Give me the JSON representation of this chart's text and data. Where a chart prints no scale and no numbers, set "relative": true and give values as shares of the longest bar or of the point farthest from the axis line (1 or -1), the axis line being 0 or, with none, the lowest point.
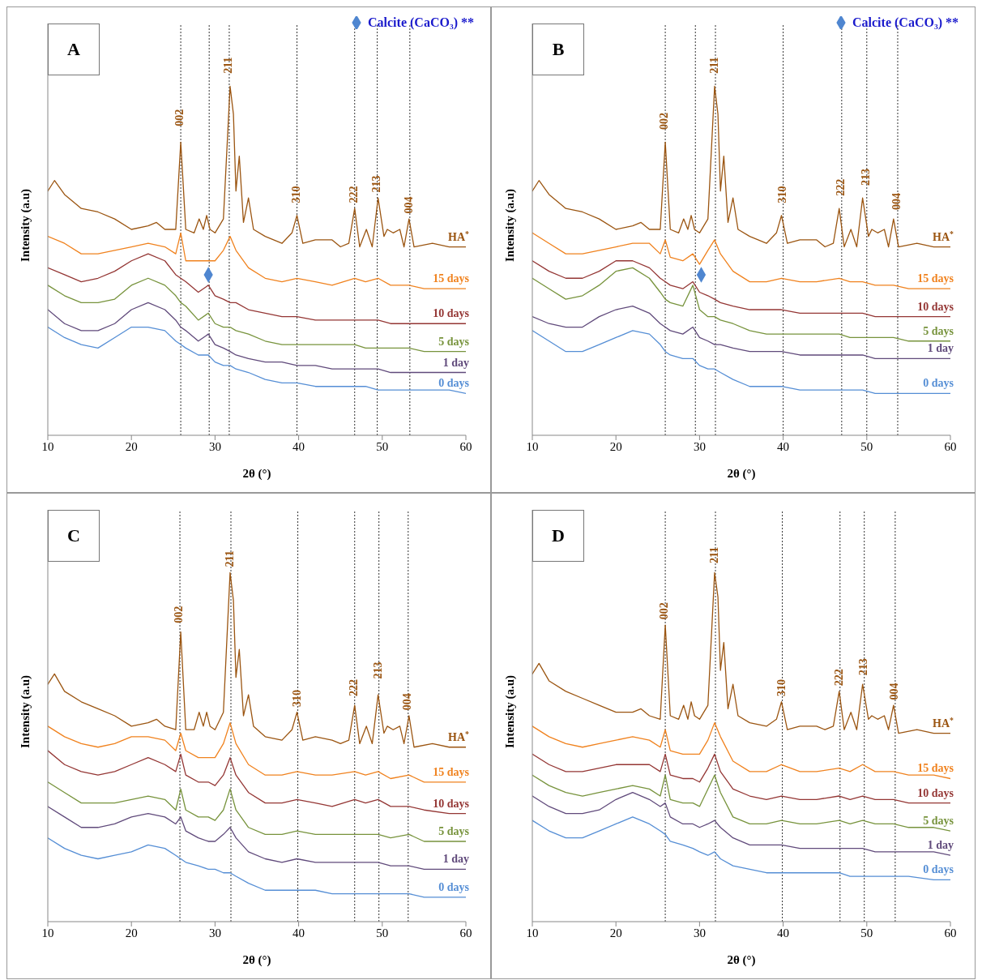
{
  "chart_data": [
    {
      "type": "line",
      "title": "A",
      "xlabel": "2θ (°)",
      "ylabel": "Intensity (a.u)",
      "relative": true,
      "xlim": [
        10,
        60
      ],
      "xticks": [
        10,
        20,
        30,
        40,
        50,
        60
      ],
      "grid": false,
      "marker": "none",
      "legend": "top right",
      "series": [
        {
          "name": "HA$^{*}$",
          "color": "#9b5511",
          "x": [
            10,
            10.8,
            12,
            14,
            16,
            18,
            20,
            22,
            23,
            24,
            25.3,
            25.9,
            26.5,
            27.5,
            28.1,
            28.6,
            29,
            29.4,
            30,
            31,
            31.8,
            32.2,
            32.5,
            32.9,
            33.4,
            34,
            34.6,
            36,
            38,
            39.2,
            39.8,
            40.5,
            42,
            44,
            45,
            46,
            46.7,
            47.3,
            48.1,
            48.8,
            49.5,
            50.2,
            50.6,
            51.3,
            52.1,
            52.6,
            53.2,
            53.8,
            56,
            58,
            60
          ],
          "values": [
            0.7,
            0.73,
            0.69,
            0.65,
            0.64,
            0.62,
            0.59,
            0.6,
            0.61,
            0.59,
            0.59,
            0.84,
            0.59,
            0.58,
            0.62,
            0.59,
            0.63,
            0.59,
            0.58,
            0.62,
            1,
            0.92,
            0.7,
            0.8,
            0.61,
            0.68,
            0.59,
            0.57,
            0.55,
            0.58,
            0.63,
            0.55,
            0.56,
            0.56,
            0.54,
            0.55,
            0.65,
            0.54,
            0.59,
            0.54,
            0.68,
            0.57,
            0.59,
            0.58,
            0.59,
            0.54,
            0.62,
            0.54,
            0.55,
            0.54,
            0.54
          ]
        },
        {
          "name": "15 days",
          "color": "#f0821e",
          "x": [
            10,
            12,
            14,
            16,
            18,
            20,
            22,
            24,
            25.3,
            25.9,
            26.5,
            28,
            29.2,
            30,
            31,
            31.8,
            32.5,
            34,
            36,
            38,
            39.8,
            42,
            44,
            46.7,
            48,
            49.5,
            51,
            53.2,
            55,
            58,
            60
          ],
          "values": [
            0.57,
            0.55,
            0.52,
            0.52,
            0.53,
            0.54,
            0.55,
            0.54,
            0.52,
            0.58,
            0.5,
            0.5,
            0.5,
            0.5,
            0.53,
            0.57,
            0.53,
            0.48,
            0.45,
            0.44,
            0.45,
            0.44,
            0.43,
            0.45,
            0.44,
            0.45,
            0.43,
            0.43,
            0.42,
            0.42,
            0.42
          ]
        },
        {
          "name": "10 days",
          "color": "#943634",
          "x": [
            10,
            12,
            14,
            16,
            18,
            20,
            22,
            24,
            25.3,
            25.9,
            26.5,
            28,
            29.2,
            30,
            31,
            31.8,
            32.5,
            34,
            36,
            38,
            39.8,
            42,
            44,
            46.7,
            48,
            49.5,
            51,
            53.2,
            55,
            58,
            60
          ],
          "values": [
            0.48,
            0.46,
            0.44,
            0.45,
            0.47,
            0.5,
            0.52,
            0.5,
            0.46,
            0.45,
            0.44,
            0.41,
            0.43,
            0.4,
            0.39,
            0.38,
            0.38,
            0.36,
            0.35,
            0.34,
            0.34,
            0.33,
            0.33,
            0.33,
            0.33,
            0.33,
            0.32,
            0.32,
            0.32,
            0.32,
            0.32
          ]
        },
        {
          "name": "5 days",
          "color": "#77933c",
          "x": [
            10,
            12,
            14,
            16,
            18,
            20,
            22,
            24,
            25.3,
            25.9,
            26.5,
            28,
            29.2,
            30,
            31,
            31.8,
            32.5,
            34,
            36,
            38,
            39.8,
            42,
            44,
            46.7,
            48,
            49.5,
            51,
            53.2,
            55,
            58,
            60
          ],
          "values": [
            0.43,
            0.4,
            0.38,
            0.38,
            0.39,
            0.43,
            0.45,
            0.43,
            0.4,
            0.38,
            0.37,
            0.33,
            0.35,
            0.32,
            0.31,
            0.31,
            0.3,
            0.29,
            0.27,
            0.26,
            0.26,
            0.26,
            0.26,
            0.26,
            0.25,
            0.25,
            0.25,
            0.25,
            0.24,
            0.24,
            0.24
          ]
        },
        {
          "name": "1 day",
          "color": "#604a7b",
          "x": [
            10,
            12,
            14,
            16,
            18,
            20,
            22,
            24,
            25.3,
            25.9,
            26.5,
            28,
            29.2,
            30,
            31,
            31.8,
            32.5,
            34,
            36,
            38,
            39.8,
            42,
            44,
            46.7,
            48,
            49.5,
            51,
            53.2,
            55,
            58,
            60
          ],
          "values": [
            0.36,
            0.32,
            0.3,
            0.3,
            0.32,
            0.36,
            0.38,
            0.36,
            0.33,
            0.31,
            0.3,
            0.27,
            0.29,
            0.26,
            0.25,
            0.24,
            0.23,
            0.22,
            0.21,
            0.21,
            0.2,
            0.2,
            0.19,
            0.19,
            0.19,
            0.19,
            0.18,
            0.18,
            0.18,
            0.18,
            0.18
          ]
        },
        {
          "name": "0 days",
          "color": "#558ed5",
          "x": [
            10,
            12,
            14,
            16,
            18,
            20,
            22,
            24,
            25.3,
            25.9,
            26.5,
            28,
            29.2,
            30,
            31,
            31.8,
            32.5,
            34,
            36,
            38,
            39.8,
            42,
            44,
            46.7,
            48,
            49.5,
            51,
            53.2,
            55,
            58,
            60
          ],
          "values": [
            0.31,
            0.28,
            0.26,
            0.25,
            0.28,
            0.31,
            0.31,
            0.3,
            0.27,
            0.26,
            0.25,
            0.23,
            0.23,
            0.21,
            0.2,
            0.2,
            0.19,
            0.18,
            0.16,
            0.15,
            0.15,
            0.14,
            0.14,
            0.14,
            0.14,
            0.13,
            0.13,
            0.13,
            0.13,
            0.13,
            0.12
          ]
        },
        {
          "type": "scatter",
          "name": "Calcite (CaCO₃) **",
          "color": "#4f86d0",
          "marker": "diamond",
          "x": [
            29.2
          ],
          "values": [
            0.46
          ]
        }
      ],
      "ref_lines": [
        {
          "axis": "x",
          "value": 25.9,
          "color": "#333333",
          "line_style": "dotted"
        },
        {
          "axis": "x",
          "value": 29.3,
          "color": "#333333",
          "line_style": "dotted"
        },
        {
          "axis": "x",
          "value": 31.7,
          "color": "#333333",
          "line_style": "dotted"
        },
        {
          "axis": "x",
          "value": 39.8,
          "color": "#333333",
          "line_style": "dotted"
        },
        {
          "axis": "x",
          "value": 46.7,
          "color": "#333333",
          "line_style": "dotted"
        },
        {
          "axis": "x",
          "value": 49.4,
          "color": "#333333",
          "line_style": "dotted"
        },
        {
          "axis": "x",
          "value": 53.3,
          "color": "#333333",
          "line_style": "dotted"
        }
      ],
      "annotations": [
        {
          "text": "002",
          "x": 25.9,
          "y": 0.91
        },
        {
          "text": "211",
          "x": 31.7,
          "y": 1.06
        },
        {
          "text": "310",
          "x": 39.8,
          "y": 0.69
        },
        {
          "text": "222",
          "x": 46.7,
          "y": 0.69
        },
        {
          "text": "213",
          "x": 49.4,
          "y": 0.72
        },
        {
          "text": "004",
          "x": 53.3,
          "y": 0.66
        }
      ]
    },
    {
      "type": "line",
      "title": "B",
      "xlabel": "2θ (°)",
      "ylabel": "Intensity (a.u)",
      "relative": true,
      "xlim": [
        10,
        60
      ],
      "xticks": [
        10,
        20,
        30,
        40,
        50,
        60
      ],
      "grid": false,
      "marker": "none",
      "legend": "top right",
      "series": [
        {
          "name": "HA$^{*}$",
          "color": "#9b5511",
          "x": [
            10,
            10.8,
            12,
            14,
            16,
            18,
            20,
            22,
            23,
            24,
            25.3,
            25.9,
            26.5,
            27.5,
            28.1,
            28.6,
            29,
            29.4,
            30,
            31,
            31.8,
            32.2,
            32.5,
            32.9,
            33.4,
            34,
            34.6,
            36,
            38,
            39.2,
            39.8,
            40.5,
            42,
            44,
            45,
            46,
            46.7,
            47.3,
            48.1,
            48.8,
            49.5,
            50.2,
            50.6,
            51.3,
            52.1,
            52.6,
            53.2,
            53.8,
            56,
            58,
            60
          ],
          "values": [
            0.7,
            0.73,
            0.69,
            0.65,
            0.64,
            0.62,
            0.59,
            0.6,
            0.61,
            0.59,
            0.59,
            0.84,
            0.59,
            0.58,
            0.62,
            0.59,
            0.63,
            0.59,
            0.58,
            0.62,
            1,
            0.92,
            0.7,
            0.8,
            0.61,
            0.68,
            0.59,
            0.57,
            0.55,
            0.58,
            0.63,
            0.55,
            0.56,
            0.56,
            0.54,
            0.55,
            0.65,
            0.54,
            0.59,
            0.54,
            0.68,
            0.57,
            0.59,
            0.58,
            0.59,
            0.54,
            0.62,
            0.54,
            0.55,
            0.54,
            0.54
          ]
        },
        {
          "name": "15 days",
          "color": "#f0821e",
          "x": [
            10,
            12,
            14,
            16,
            18,
            20,
            22,
            24,
            25.3,
            25.9,
            26.5,
            28,
            29.2,
            30,
            31,
            31.8,
            32.5,
            34,
            36,
            38,
            39.8,
            42,
            44,
            46.7,
            48,
            49.5,
            51,
            53.2,
            55,
            58,
            60
          ],
          "values": [
            0.58,
            0.55,
            0.52,
            0.52,
            0.53,
            0.54,
            0.55,
            0.55,
            0.52,
            0.56,
            0.51,
            0.5,
            0.52,
            0.49,
            0.53,
            0.56,
            0.52,
            0.47,
            0.44,
            0.44,
            0.45,
            0.44,
            0.44,
            0.45,
            0.44,
            0.44,
            0.43,
            0.43,
            0.42,
            0.42,
            0.42
          ]
        },
        {
          "name": "10 days",
          "color": "#943634",
          "x": [
            10,
            12,
            14,
            16,
            18,
            20,
            22,
            24,
            25.3,
            25.9,
            26.5,
            28,
            29.2,
            30,
            31,
            31.8,
            32.5,
            34,
            36,
            38,
            39.8,
            42,
            44,
            46.7,
            48,
            49.5,
            51,
            53.2,
            55,
            58,
            60
          ],
          "values": [
            0.5,
            0.47,
            0.45,
            0.45,
            0.47,
            0.5,
            0.5,
            0.48,
            0.45,
            0.44,
            0.43,
            0.42,
            0.44,
            0.41,
            0.4,
            0.39,
            0.38,
            0.37,
            0.36,
            0.36,
            0.36,
            0.35,
            0.35,
            0.35,
            0.35,
            0.35,
            0.34,
            0.34,
            0.34,
            0.34,
            0.34
          ]
        },
        {
          "name": "5 days",
          "color": "#77933c",
          "x": [
            10,
            12,
            14,
            16,
            18,
            20,
            22,
            24,
            25.3,
            25.9,
            26.5,
            28,
            29.2,
            30,
            31,
            31.8,
            32.5,
            34,
            36,
            38,
            39.8,
            42,
            44,
            46.7,
            48,
            49.5,
            51,
            53.2,
            55,
            58,
            60
          ],
          "values": [
            0.45,
            0.42,
            0.39,
            0.4,
            0.43,
            0.47,
            0.48,
            0.45,
            0.41,
            0.39,
            0.38,
            0.37,
            0.43,
            0.36,
            0.34,
            0.34,
            0.33,
            0.32,
            0.3,
            0.29,
            0.29,
            0.29,
            0.29,
            0.29,
            0.28,
            0.28,
            0.28,
            0.28,
            0.27,
            0.27,
            0.27
          ]
        },
        {
          "name": "1 day",
          "color": "#604a7b",
          "x": [
            10,
            12,
            14,
            16,
            18,
            20,
            22,
            24,
            25.3,
            25.9,
            26.5,
            28,
            29.2,
            30,
            31,
            31.8,
            32.5,
            34,
            36,
            38,
            39.8,
            42,
            44,
            46.7,
            48,
            49.5,
            51,
            53.2,
            55,
            58,
            60
          ],
          "values": [
            0.34,
            0.32,
            0.31,
            0.31,
            0.34,
            0.36,
            0.37,
            0.35,
            0.32,
            0.31,
            0.3,
            0.29,
            0.31,
            0.28,
            0.27,
            0.26,
            0.26,
            0.25,
            0.24,
            0.24,
            0.24,
            0.23,
            0.23,
            0.23,
            0.23,
            0.23,
            0.22,
            0.22,
            0.22,
            0.22,
            0.22
          ]
        },
        {
          "name": "0 days",
          "color": "#558ed5",
          "x": [
            10,
            12,
            14,
            16,
            18,
            20,
            22,
            24,
            25.3,
            25.9,
            26.5,
            28,
            29.2,
            30,
            31,
            31.8,
            32.5,
            34,
            36,
            38,
            39.8,
            42,
            44,
            46.7,
            48,
            49.5,
            51,
            53.2,
            55,
            58,
            60
          ],
          "values": [
            0.3,
            0.27,
            0.24,
            0.24,
            0.26,
            0.28,
            0.3,
            0.29,
            0.26,
            0.24,
            0.23,
            0.22,
            0.22,
            0.2,
            0.19,
            0.19,
            0.18,
            0.16,
            0.14,
            0.14,
            0.14,
            0.13,
            0.13,
            0.13,
            0.13,
            0.13,
            0.12,
            0.12,
            0.12,
            0.12,
            0.12
          ]
        },
        {
          "type": "scatter",
          "name": "Calcite (CaCO₃) **",
          "color": "#4f86d0",
          "marker": "diamond",
          "x": [
            30.2
          ],
          "values": [
            0.46
          ]
        }
      ],
      "ref_lines": [
        {
          "axis": "x",
          "value": 25.9,
          "color": "#333333",
          "line_style": "dotted"
        },
        {
          "axis": "x",
          "value": 29.5,
          "color": "#333333",
          "line_style": "dotted"
        },
        {
          "axis": "x",
          "value": 31.9,
          "color": "#333333",
          "line_style": "dotted"
        },
        {
          "axis": "x",
          "value": 40,
          "color": "#333333",
          "line_style": "dotted"
        },
        {
          "axis": "x",
          "value": 47,
          "color": "#333333",
          "line_style": "dotted"
        },
        {
          "axis": "x",
          "value": 50,
          "color": "#333333",
          "line_style": "dotted"
        },
        {
          "axis": "x",
          "value": 53.7,
          "color": "#333333",
          "line_style": "dotted"
        }
      ],
      "annotations": [
        {
          "text": "002",
          "x": 25.9,
          "y": 0.9
        },
        {
          "text": "211",
          "x": 31.9,
          "y": 1.06
        },
        {
          "text": "310",
          "x": 40,
          "y": 0.69
        },
        {
          "text": "222",
          "x": 47,
          "y": 0.71
        },
        {
          "text": "213",
          "x": 50,
          "y": 0.74
        },
        {
          "text": "004",
          "x": 53.7,
          "y": 0.67
        }
      ]
    },
    {
      "type": "line",
      "title": "C",
      "xlabel": "2θ (°)",
      "ylabel": "Intensity (a.u)",
      "relative": true,
      "xlim": [
        10,
        60
      ],
      "xticks": [
        10,
        20,
        30,
        40,
        50,
        60
      ],
      "grid": false,
      "marker": "none",
      "series": [
        {
          "name": "HA$^{*}$",
          "color": "#9b5511",
          "x": [
            10,
            10.8,
            12,
            14,
            16,
            18,
            20,
            22,
            23,
            24,
            25.3,
            25.9,
            26.5,
            27.5,
            28.1,
            28.6,
            29,
            29.4,
            30,
            31,
            31.8,
            32.2,
            32.5,
            32.9,
            33.4,
            34,
            34.6,
            36,
            38,
            39.2,
            39.8,
            40.5,
            42,
            44,
            45,
            46,
            46.7,
            47.3,
            48.1,
            48.8,
            49.5,
            50.2,
            50.6,
            51.3,
            52.1,
            52.6,
            53.2,
            53.8,
            56,
            58,
            60
          ],
          "values": [
            0.68,
            0.71,
            0.66,
            0.63,
            0.61,
            0.59,
            0.56,
            0.57,
            0.58,
            0.56,
            0.55,
            0.83,
            0.55,
            0.55,
            0.6,
            0.56,
            0.6,
            0.56,
            0.55,
            0.6,
            1,
            0.92,
            0.7,
            0.78,
            0.59,
            0.65,
            0.56,
            0.53,
            0.52,
            0.55,
            0.6,
            0.52,
            0.53,
            0.52,
            0.51,
            0.52,
            0.62,
            0.51,
            0.56,
            0.51,
            0.65,
            0.54,
            0.56,
            0.55,
            0.56,
            0.51,
            0.59,
            0.5,
            0.51,
            0.5,
            0.5
          ]
        },
        {
          "name": "15 days",
          "color": "#f0821e",
          "x": [
            10,
            12,
            14,
            16,
            18,
            20,
            22,
            24,
            25.3,
            25.9,
            26.5,
            28,
            29.2,
            30,
            31,
            31.8,
            32.5,
            34,
            36,
            38,
            39.8,
            42,
            44,
            46.7,
            48,
            49.5,
            51,
            53.2,
            55,
            58,
            60
          ],
          "values": [
            0.56,
            0.53,
            0.51,
            0.5,
            0.51,
            0.53,
            0.53,
            0.52,
            0.49,
            0.54,
            0.49,
            0.47,
            0.47,
            0.47,
            0.51,
            0.57,
            0.51,
            0.45,
            0.42,
            0.42,
            0.43,
            0.42,
            0.42,
            0.43,
            0.42,
            0.43,
            0.41,
            0.42,
            0.4,
            0.4,
            0.4
          ]
        },
        {
          "name": "10 days",
          "color": "#943634",
          "x": [
            10,
            12,
            14,
            16,
            18,
            20,
            22,
            24,
            25.3,
            25.9,
            26.5,
            28,
            29.2,
            30,
            31,
            31.8,
            32.5,
            34,
            36,
            38,
            39.8,
            42,
            44,
            46.7,
            48,
            49.5,
            51,
            53.2,
            55,
            58,
            60
          ],
          "values": [
            0.49,
            0.45,
            0.43,
            0.42,
            0.43,
            0.45,
            0.47,
            0.45,
            0.43,
            0.48,
            0.42,
            0.4,
            0.4,
            0.39,
            0.42,
            0.47,
            0.42,
            0.37,
            0.34,
            0.34,
            0.35,
            0.34,
            0.33,
            0.35,
            0.34,
            0.35,
            0.33,
            0.33,
            0.32,
            0.31,
            0.31
          ]
        },
        {
          "name": "5 days",
          "color": "#77933c",
          "x": [
            10,
            12,
            14,
            16,
            18,
            20,
            22,
            24,
            25.3,
            25.9,
            26.5,
            28,
            29.2,
            30,
            31,
            31.8,
            32.5,
            34,
            36,
            38,
            39.8,
            42,
            44,
            46.7,
            48,
            49.5,
            51,
            53.2,
            55,
            58,
            60
          ],
          "values": [
            0.4,
            0.37,
            0.34,
            0.34,
            0.34,
            0.35,
            0.36,
            0.35,
            0.32,
            0.38,
            0.32,
            0.3,
            0.3,
            0.29,
            0.32,
            0.38,
            0.32,
            0.27,
            0.25,
            0.25,
            0.26,
            0.25,
            0.25,
            0.25,
            0.25,
            0.25,
            0.24,
            0.25,
            0.23,
            0.23,
            0.23
          ]
        },
        {
          "name": "1 day",
          "color": "#604a7b",
          "x": [
            10,
            12,
            14,
            16,
            18,
            20,
            22,
            24,
            25.3,
            25.9,
            26.5,
            28,
            29.2,
            30,
            31,
            31.8,
            32.5,
            34,
            36,
            38,
            39.8,
            42,
            44,
            46.7,
            48,
            49.5,
            51,
            53.2,
            55,
            58,
            60
          ],
          "values": [
            0.33,
            0.3,
            0.27,
            0.27,
            0.28,
            0.3,
            0.31,
            0.3,
            0.28,
            0.3,
            0.26,
            0.24,
            0.23,
            0.23,
            0.25,
            0.27,
            0.24,
            0.2,
            0.18,
            0.17,
            0.18,
            0.17,
            0.17,
            0.17,
            0.17,
            0.17,
            0.16,
            0.16,
            0.15,
            0.15,
            0.15
          ]
        },
        {
          "name": "0 days",
          "color": "#558ed5",
          "x": [
            10,
            12,
            14,
            16,
            18,
            20,
            22,
            24,
            25.3,
            25.9,
            26.5,
            28,
            29.2,
            30,
            31,
            31.8,
            32.5,
            34,
            36,
            38,
            39.8,
            42,
            44,
            46.7,
            48,
            49.5,
            51,
            53.2,
            55,
            58,
            60
          ],
          "values": [
            0.24,
            0.21,
            0.19,
            0.18,
            0.19,
            0.2,
            0.22,
            0.21,
            0.19,
            0.18,
            0.17,
            0.16,
            0.15,
            0.15,
            0.14,
            0.14,
            0.13,
            0.11,
            0.09,
            0.09,
            0.09,
            0.09,
            0.08,
            0.08,
            0.08,
            0.08,
            0.08,
            0.08,
            0.07,
            0.07,
            0.07
          ]
        }
      ],
      "ref_lines": [
        {
          "axis": "x",
          "value": 25.8,
          "color": "#333333",
          "line_style": "dotted"
        },
        {
          "axis": "x",
          "value": 31.9,
          "color": "#333333",
          "line_style": "dotted"
        },
        {
          "axis": "x",
          "value": 39.9,
          "color": "#333333",
          "line_style": "dotted"
        },
        {
          "axis": "x",
          "value": 46.7,
          "color": "#333333",
          "line_style": "dotted"
        },
        {
          "axis": "x",
          "value": 49.6,
          "color": "#333333",
          "line_style": "dotted"
        },
        {
          "axis": "x",
          "value": 53.1,
          "color": "#333333",
          "line_style": "dotted"
        }
      ],
      "annotations": [
        {
          "text": "002",
          "x": 25.8,
          "y": 0.88
        },
        {
          "text": "211",
          "x": 31.9,
          "y": 1.04
        },
        {
          "text": "310",
          "x": 39.9,
          "y": 0.64
        },
        {
          "text": "222",
          "x": 46.7,
          "y": 0.67
        },
        {
          "text": "213",
          "x": 49.6,
          "y": 0.72
        },
        {
          "text": "004",
          "x": 53.1,
          "y": 0.63
        }
      ]
    },
    {
      "type": "line",
      "title": "D",
      "xlabel": "2θ (°)",
      "ylabel": "Intensity (a.u)",
      "relative": true,
      "xlim": [
        10,
        60
      ],
      "xticks": [
        10,
        20,
        30,
        40,
        50,
        60
      ],
      "grid": false,
      "marker": "none",
      "series": [
        {
          "name": "HA$^{*}$",
          "color": "#9b5511",
          "x": [
            10,
            10.8,
            12,
            14,
            16,
            18,
            20,
            22,
            23,
            24,
            25.3,
            25.9,
            26.5,
            27.5,
            28.1,
            28.6,
            29,
            29.4,
            30,
            31,
            31.8,
            32.2,
            32.5,
            32.9,
            33.4,
            34,
            34.6,
            36,
            38,
            39.2,
            39.8,
            40.5,
            42,
            44,
            45,
            46,
            46.7,
            47.3,
            48.1,
            48.8,
            49.5,
            50.2,
            50.6,
            51.3,
            52.1,
            52.6,
            53.2,
            53.8,
            56,
            58,
            60
          ],
          "values": [
            0.71,
            0.74,
            0.69,
            0.66,
            0.64,
            0.62,
            0.6,
            0.6,
            0.61,
            0.59,
            0.58,
            0.85,
            0.59,
            0.58,
            0.62,
            0.58,
            0.63,
            0.59,
            0.58,
            0.62,
            1,
            0.93,
            0.72,
            0.8,
            0.61,
            0.68,
            0.59,
            0.57,
            0.56,
            0.58,
            0.63,
            0.55,
            0.56,
            0.56,
            0.55,
            0.56,
            0.66,
            0.55,
            0.6,
            0.55,
            0.68,
            0.58,
            0.59,
            0.58,
            0.59,
            0.55,
            0.62,
            0.54,
            0.55,
            0.54,
            0.54
          ]
        },
        {
          "name": "15 days",
          "color": "#f0821e",
          "x": [
            10,
            12,
            14,
            16,
            18,
            20,
            22,
            24,
            25.3,
            25.9,
            26.5,
            28,
            29.2,
            30,
            31,
            31.8,
            32.5,
            34,
            36,
            38,
            39.8,
            42,
            44,
            46.7,
            48,
            49.5,
            51,
            53.2,
            55,
            58,
            60
          ],
          "values": [
            0.56,
            0.53,
            0.51,
            0.5,
            0.51,
            0.52,
            0.53,
            0.52,
            0.5,
            0.55,
            0.49,
            0.48,
            0.48,
            0.48,
            0.52,
            0.57,
            0.53,
            0.46,
            0.43,
            0.43,
            0.45,
            0.43,
            0.43,
            0.44,
            0.43,
            0.45,
            0.43,
            0.43,
            0.42,
            0.42,
            0.41
          ]
        },
        {
          "name": "10 days",
          "color": "#943634",
          "x": [
            10,
            12,
            14,
            16,
            18,
            20,
            22,
            24,
            25.3,
            25.9,
            26.5,
            28,
            29.2,
            30,
            31,
            31.8,
            32.5,
            34,
            36,
            38,
            39.8,
            42,
            44,
            46.7,
            48,
            49.5,
            51,
            53.2,
            55,
            58,
            60
          ],
          "values": [
            0.48,
            0.45,
            0.43,
            0.43,
            0.44,
            0.45,
            0.45,
            0.45,
            0.43,
            0.48,
            0.42,
            0.41,
            0.41,
            0.4,
            0.44,
            0.48,
            0.43,
            0.38,
            0.36,
            0.35,
            0.36,
            0.35,
            0.35,
            0.36,
            0.35,
            0.36,
            0.35,
            0.35,
            0.34,
            0.34,
            0.34
          ]
        },
        {
          "name": "5 days",
          "color": "#77933c",
          "x": [
            10,
            12,
            14,
            16,
            18,
            20,
            22,
            24,
            25.3,
            25.9,
            26.5,
            28,
            29.2,
            30,
            31,
            31.8,
            32.5,
            34,
            36,
            38,
            39.8,
            42,
            44,
            46.7,
            48,
            49.5,
            51,
            53.2,
            55,
            58,
            60
          ],
          "values": [
            0.42,
            0.39,
            0.37,
            0.36,
            0.37,
            0.38,
            0.39,
            0.38,
            0.36,
            0.42,
            0.35,
            0.34,
            0.34,
            0.33,
            0.38,
            0.42,
            0.37,
            0.3,
            0.28,
            0.28,
            0.29,
            0.28,
            0.28,
            0.29,
            0.28,
            0.29,
            0.28,
            0.28,
            0.27,
            0.27,
            0.26
          ]
        },
        {
          "name": "1 day",
          "color": "#604a7b",
          "x": [
            10,
            12,
            14,
            16,
            18,
            20,
            22,
            24,
            25.3,
            25.9,
            26.5,
            28,
            29.2,
            30,
            31,
            31.8,
            32.5,
            34,
            36,
            38,
            39.8,
            42,
            44,
            46.7,
            48,
            49.5,
            51,
            53.2,
            55,
            58,
            60
          ],
          "values": [
            0.36,
            0.33,
            0.31,
            0.31,
            0.32,
            0.35,
            0.37,
            0.35,
            0.33,
            0.34,
            0.3,
            0.28,
            0.28,
            0.27,
            0.28,
            0.29,
            0.27,
            0.24,
            0.22,
            0.22,
            0.22,
            0.21,
            0.21,
            0.21,
            0.21,
            0.21,
            0.2,
            0.2,
            0.2,
            0.2,
            0.19
          ]
        },
        {
          "name": "0 days",
          "color": "#558ed5",
          "x": [
            10,
            12,
            14,
            16,
            18,
            20,
            22,
            24,
            25.3,
            25.9,
            26.5,
            28,
            29.2,
            30,
            31,
            31.8,
            32.5,
            34,
            36,
            38,
            39.8,
            42,
            44,
            46.7,
            48,
            49.5,
            51,
            53.2,
            55,
            58,
            60
          ],
          "values": [
            0.29,
            0.26,
            0.24,
            0.24,
            0.26,
            0.28,
            0.3,
            0.28,
            0.26,
            0.25,
            0.23,
            0.22,
            0.21,
            0.2,
            0.19,
            0.2,
            0.18,
            0.16,
            0.15,
            0.14,
            0.14,
            0.14,
            0.14,
            0.14,
            0.13,
            0.13,
            0.13,
            0.13,
            0.13,
            0.12,
            0.12
          ]
        }
      ],
      "ref_lines": [
        {
          "axis": "x",
          "value": 25.9,
          "color": "#333333",
          "line_style": "dotted"
        },
        {
          "axis": "x",
          "value": 31.9,
          "color": "#333333",
          "line_style": "dotted"
        },
        {
          "axis": "x",
          "value": 39.9,
          "color": "#333333",
          "line_style": "dotted"
        },
        {
          "axis": "x",
          "value": 46.8,
          "color": "#333333",
          "line_style": "dotted"
        },
        {
          "axis": "x",
          "value": 49.7,
          "color": "#333333",
          "line_style": "dotted"
        },
        {
          "axis": "x",
          "value": 53.4,
          "color": "#333333",
          "line_style": "dotted"
        }
      ],
      "annotations": [
        {
          "text": "002",
          "x": 25.9,
          "y": 0.89
        },
        {
          "text": "211",
          "x": 31.9,
          "y": 1.05
        },
        {
          "text": "310",
          "x": 39.9,
          "y": 0.67
        },
        {
          "text": "222",
          "x": 46.8,
          "y": 0.7
        },
        {
          "text": "213",
          "x": 49.7,
          "y": 0.73
        },
        {
          "text": "004",
          "x": 53.4,
          "y": 0.66
        }
      ]
    }
  ]
}
